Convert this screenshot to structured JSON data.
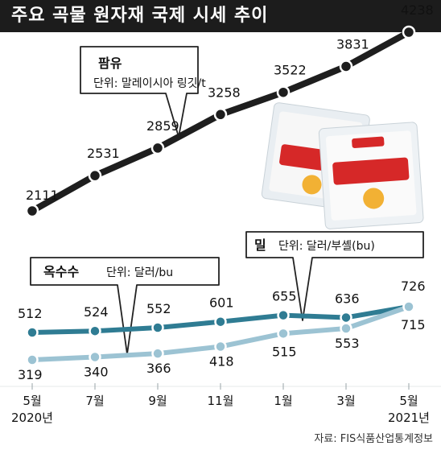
{
  "header": {
    "title": "주요 곡물 원자재 국제 시세 추이"
  },
  "footer": {
    "source": "자료: FIS식품산업통계정보"
  },
  "colors": {
    "palm": "#1e1e1e",
    "corn": "#2f7c93",
    "wheat": "#9cc3d3",
    "callout_border": "#222222"
  },
  "chart_data": {
    "type": "line",
    "x": [
      "5월",
      "7월",
      "9월",
      "11월",
      "1월",
      "3월",
      "5월"
    ],
    "x_year_labels": {
      "first": "2020년",
      "last": "2021년"
    },
    "series": [
      {
        "name": "팜유",
        "unit": "단위: 말레이시아 링깃/t",
        "values": [
          2111,
          2531,
          2859,
          3258,
          3522,
          3831,
          4238
        ]
      },
      {
        "name": "옥수수",
        "unit": "단위: 달러/bu",
        "values": [
          512,
          524,
          552,
          601,
          655,
          636,
          726
        ]
      },
      {
        "name": "밀",
        "unit": "단위: 달러/부셸(bu)",
        "values": [
          319,
          340,
          366,
          418,
          515,
          553,
          715
        ]
      }
    ]
  }
}
